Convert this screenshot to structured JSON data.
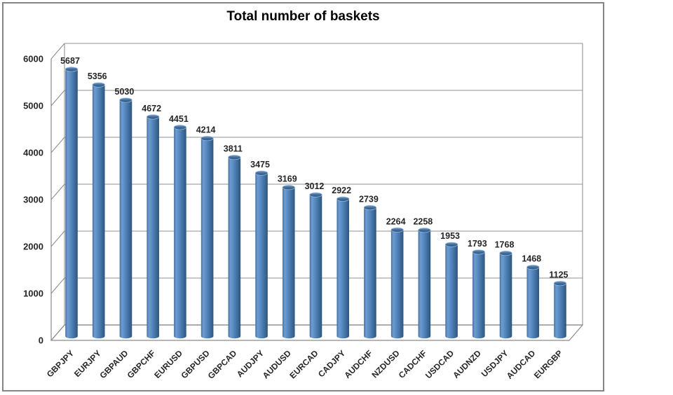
{
  "chart_data": {
    "type": "bar",
    "style": "3d-cylinder",
    "title": "Total number of baskets",
    "xlabel": "",
    "ylabel": "",
    "categories": [
      "GBPJPY",
      "EURJPY",
      "GBPAUD",
      "GBPCHF",
      "EURUSD",
      "GBPUSD",
      "GBPCAD",
      "AUDJPY",
      "AUDUSD",
      "EURCAD",
      "CADJPY",
      "AUDCHF",
      "NZDUSD",
      "CADCHF",
      "USDCAD",
      "AUDNZD",
      "USDJPY",
      "AUDCAD",
      "EURGBP"
    ],
    "values": [
      5687,
      5356,
      5030,
      4672,
      4451,
      4214,
      3811,
      3475,
      3169,
      3012,
      2922,
      2739,
      2264,
      2258,
      1953,
      1793,
      1768,
      1468,
      1125
    ],
    "data_labels": true,
    "ylim": [
      0,
      6000
    ],
    "yticks": [
      0,
      1000,
      2000,
      3000,
      4000,
      5000,
      6000
    ],
    "grid": true,
    "legend_position": "none",
    "colors": {
      "bar_base": "#4F81BD",
      "bar_gradient": [
        "#44709F",
        "#6E9CD2",
        "#5588C0",
        "#2D567F"
      ],
      "bar_top_gradient": [
        "#7EA4CE",
        "#426F9F",
        "#2E567E"
      ],
      "bar_top_rim": "#9DBADB",
      "gridline": "#A8A8A8",
      "axis": "#8A8A8A",
      "frame_border": "#858585",
      "text": "#262626",
      "title_text": "#000000"
    }
  }
}
